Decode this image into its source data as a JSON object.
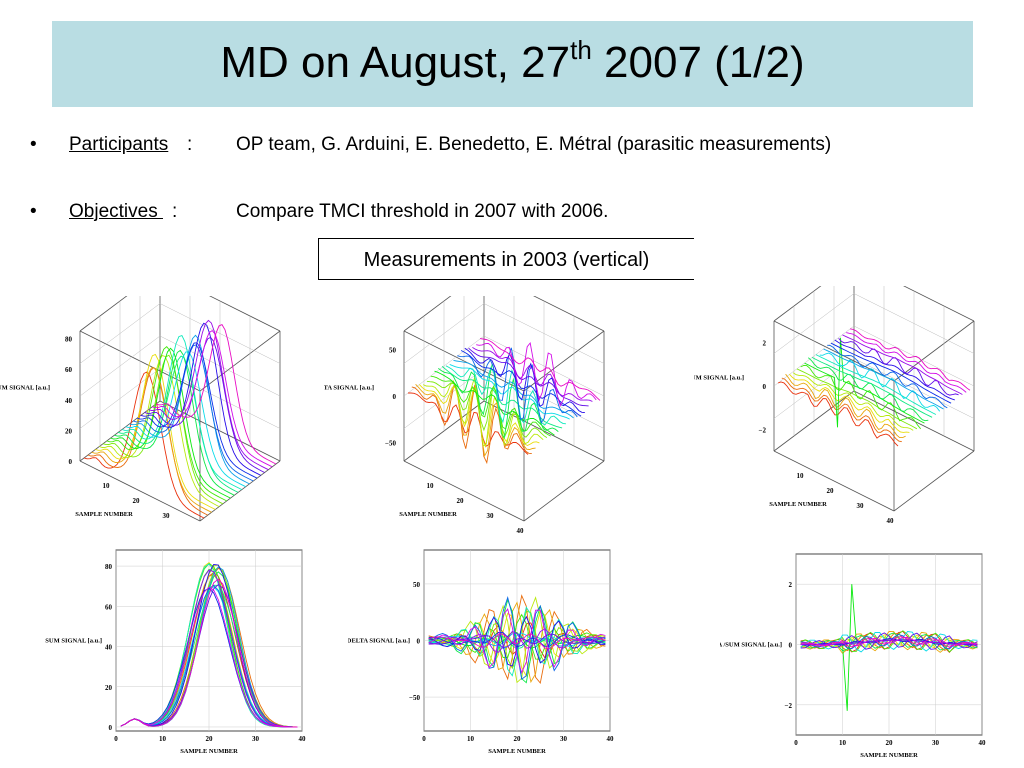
{
  "slide": {
    "title_main": "MD on August, 27",
    "title_sup": "th",
    "title_rest": " 2007 (1/2)",
    "bullets": [
      {
        "label": "Participants",
        "colon": ":",
        "text": "OP team, G. Arduini, E. Benedetto, E. Métral (parasitic measurements)"
      },
      {
        "label": "Objectives ",
        "colon": ":",
        "text": "Compare TMCI threshold in 2007 with 2006."
      }
    ],
    "bullet_char": "•",
    "box_caption": "Measurements in 2003 (vertical)"
  },
  "chart_data": [
    {
      "type": "surface3d",
      "xlabel": "SAMPLE NUMBER",
      "zlabel": "SUM SIGNAL [a.u.]",
      "x_ticks": [
        "10",
        "20",
        "30"
      ],
      "z_ticks": [
        "0",
        "20",
        "40",
        "60",
        "80"
      ],
      "z_range": [
        0,
        85
      ],
      "signal": "sum",
      "traces": 20
    },
    {
      "type": "surface3d",
      "xlabel": "SAMPLE NUMBER",
      "zlabel": "DELTA  SIGNAL [a.u.]",
      "x_ticks": [
        "10",
        "20",
        "30",
        "40"
      ],
      "z_ticks": [
        "−50",
        "0",
        "50"
      ],
      "z_range": [
        -70,
        70
      ],
      "signal": "delta",
      "traces": 20
    },
    {
      "type": "surface3d",
      "xlabel": "SAMPLE NUMBER",
      "zlabel": "DELTA /SUM SIGNAL [a.u.]",
      "x_ticks": [
        "10",
        "20",
        "30",
        "40"
      ],
      "z_ticks": [
        "−2",
        "0",
        "2"
      ],
      "z_range": [
        -3,
        3
      ],
      "signal": "ratio",
      "traces": 20
    },
    {
      "type": "line",
      "xlabel": "SAMPLE NUMBER",
      "ylabel": "SUM SIGNAL [a.u.]",
      "x_ticks": [
        "0",
        "10",
        "20",
        "30",
        "40"
      ],
      "y_ticks": [
        "0",
        "20",
        "40",
        "60",
        "80"
      ],
      "xlim": [
        0,
        40
      ],
      "ylim": [
        -2,
        88
      ],
      "signal": "sum",
      "traces": 20,
      "grid": true
    },
    {
      "type": "line",
      "xlabel": "SAMPLE NUMBER",
      "ylabel": "DELTA  SIGNAL [a.u.]",
      "x_ticks": [
        "0",
        "10",
        "20",
        "30",
        "40"
      ],
      "y_ticks": [
        "−50",
        "0",
        "50"
      ],
      "xlim": [
        0,
        40
      ],
      "ylim": [
        -80,
        80
      ],
      "signal": "delta",
      "traces": 20,
      "grid": true
    },
    {
      "type": "line",
      "xlabel": "SAMPLE NUMBER",
      "ylabel": "DELTA /SUM SIGNAL [a.u.]",
      "x_ticks": [
        "0",
        "10",
        "20",
        "30",
        "40"
      ],
      "y_ticks": [
        "−2",
        "0",
        "2"
      ],
      "xlim": [
        0,
        40
      ],
      "ylim": [
        -3,
        3
      ],
      "signal": "ratio",
      "traces": 20,
      "grid": true
    }
  ]
}
